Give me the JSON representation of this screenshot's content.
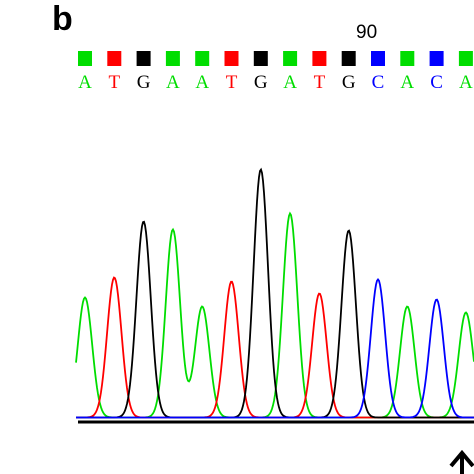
{
  "panel_label": "b",
  "colors": {
    "A": "#00dd00",
    "T": "#ff0000",
    "G": "#000000",
    "C": "#0000ff"
  },
  "chart_data": {
    "type": "line",
    "title": "",
    "position_label": "90",
    "bases": [
      "A",
      "T",
      "G",
      "A",
      "A",
      "T",
      "G",
      "A",
      "T",
      "G",
      "C",
      "A",
      "C",
      "A"
    ],
    "series": [
      {
        "base": "A",
        "peaks": [
          [
            0,
            120
          ],
          [
            3,
            188
          ],
          [
            4,
            111
          ],
          [
            7,
            204
          ],
          [
            11,
            111
          ],
          [
            13,
            105
          ]
        ]
      },
      {
        "base": "T",
        "peaks": [
          [
            1,
            140
          ],
          [
            5,
            136
          ],
          [
            8,
            124
          ]
        ]
      },
      {
        "base": "G",
        "peaks": [
          [
            2,
            196
          ],
          [
            6,
            248
          ],
          [
            9,
            187
          ]
        ]
      },
      {
        "base": "C",
        "peaks": [
          [
            10,
            138
          ],
          [
            12,
            118
          ]
        ]
      }
    ],
    "ylim": [
      0,
      260
    ],
    "grid": false
  }
}
